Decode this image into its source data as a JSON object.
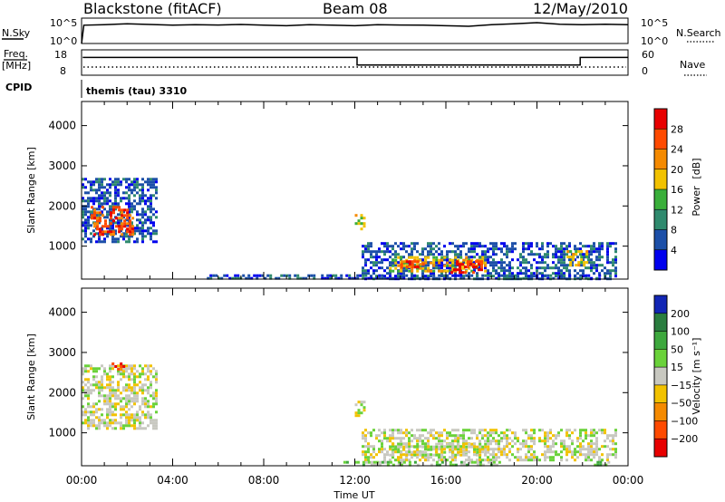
{
  "header": {
    "station": "Blackstone (fitACF)",
    "beam": "Beam 08",
    "date": "12/May/2010"
  },
  "top_panels": {
    "nsky_label": "N.Sky",
    "nsky_ticks": [
      "10^5",
      "10^0"
    ],
    "nsearch_label": "N.Search",
    "nsearch_ticks": [
      "10^5",
      "10^0"
    ],
    "freq_label": "Freq.",
    "freq_unit": "[MHz]",
    "freq_ticks": [
      "18",
      "8"
    ],
    "nave_label": "Nave",
    "nave_ticks": [
      "60",
      "0"
    ],
    "cpid_label": "CPID",
    "cpid_text": "themis (tau) 3310"
  },
  "colors": {
    "power_scale": [
      "#0000ee",
      "#1c4fa8",
      "#2f8a6e",
      "#3aaf3a",
      "#f2c200",
      "#f58a00",
      "#ff4a00",
      "#e80000"
    ],
    "velocity_scale": [
      "#1226b5",
      "#2a7d3f",
      "#3da83d",
      "#6ad23a",
      "#c8c8c0",
      "#f2c200",
      "#f58a00",
      "#ff4a00",
      "#e80000"
    ],
    "ground_scatter": "#c8c8c0"
  },
  "chart_data": [
    {
      "type": "line",
      "name_label": "N.Sky",
      "x": [
        0,
        0.1,
        1,
        2,
        3,
        4,
        5,
        6,
        7,
        8,
        9,
        10,
        11,
        12,
        13,
        14,
        15,
        16,
        17,
        18,
        19,
        20,
        21,
        22,
        23,
        24
      ],
      "values_fraction": [
        0.0,
        0.72,
        0.74,
        0.78,
        0.75,
        0.72,
        0.74,
        0.73,
        0.75,
        0.72,
        0.7,
        0.74,
        0.72,
        0.7,
        0.74,
        0.73,
        0.72,
        0.7,
        0.68,
        0.74,
        0.78,
        0.82,
        0.76,
        0.74,
        0.76,
        0.74
      ]
    },
    {
      "type": "line",
      "name_label": "Freq.",
      "ylim": [
        8,
        18
      ],
      "x": [
        0.05,
        12.1,
        12.1,
        21.9,
        21.9,
        24
      ],
      "values": [
        15,
        15,
        12,
        12,
        15,
        15
      ]
    },
    {
      "type": "heatmap",
      "title": "Power",
      "unit": "[dB]",
      "xlabel": "",
      "ylabel": "Slant Range [km]",
      "x_ticks": [
        "00:00",
        "04:00",
        "08:00",
        "12:00",
        "16:00",
        "20:00",
        "00:00"
      ],
      "y_ticks": [
        1000,
        2000,
        3000,
        4000
      ],
      "xlim": [
        0,
        24
      ],
      "ylim": [
        180,
        4600
      ],
      "colorbar_ticks": [
        4,
        8,
        12,
        16,
        20,
        24,
        28
      ],
      "regions": [
        {
          "t0": 0.0,
          "t1": 3.3,
          "r0": 1100,
          "r1": 2700,
          "level": 1
        },
        {
          "t0": 0.4,
          "t1": 2.2,
          "r0": 1300,
          "r1": 2000,
          "level": 6
        },
        {
          "t0": 12.0,
          "t1": 12.4,
          "r0": 1450,
          "r1": 1800,
          "level": 4
        },
        {
          "t0": 12.3,
          "t1": 23.5,
          "r0": 200,
          "r1": 1100,
          "level": 1
        },
        {
          "t0": 13.5,
          "t1": 17.8,
          "r0": 400,
          "r1": 750,
          "level": 4
        },
        {
          "t0": 14.0,
          "t1": 15.0,
          "r0": 450,
          "r1": 650,
          "level": 6
        },
        {
          "t0": 16.2,
          "t1": 17.6,
          "r0": 350,
          "r1": 650,
          "level": 7
        },
        {
          "t0": 21.3,
          "t1": 22.2,
          "r0": 550,
          "r1": 900,
          "level": 4
        },
        {
          "t0": 5.5,
          "t1": 23.0,
          "r0": 180,
          "r1": 300,
          "level": 1
        }
      ]
    },
    {
      "type": "heatmap",
      "title": "Velocity",
      "unit": "[m s⁻¹]",
      "xlabel": "Time UT",
      "ylabel": "Slant Range [km]",
      "x_ticks": [
        "00:00",
        "04:00",
        "08:00",
        "12:00",
        "16:00",
        "20:00",
        "00:00"
      ],
      "y_ticks": [
        1000,
        2000,
        3000,
        4000
      ],
      "xlim": [
        0,
        24
      ],
      "ylim": [
        180,
        4600
      ],
      "colorbar_ticks": [
        200,
        100,
        50,
        15,
        -15,
        -50,
        -100,
        -200
      ],
      "regions": [
        {
          "t0": 0.0,
          "t1": 3.3,
          "r0": 1100,
          "r1": 2700,
          "level": 4
        },
        {
          "t0": 12.0,
          "t1": 12.4,
          "r0": 1450,
          "r1": 1800,
          "level": 4
        },
        {
          "t0": 12.3,
          "t1": 23.5,
          "r0": 350,
          "r1": 1100,
          "level": 4
        },
        {
          "t0": 13.5,
          "t1": 17.8,
          "r0": 450,
          "r1": 750,
          "level": 4
        },
        {
          "t0": 11.5,
          "t1": 18.5,
          "r0": 180,
          "r1": 300,
          "level": 3
        },
        {
          "t0": 22.5,
          "t1": 23.3,
          "r0": 180,
          "r1": 300,
          "level": 3
        },
        {
          "t0": 1.2,
          "t1": 1.8,
          "r0": 2550,
          "r1": 2750,
          "level": 7
        }
      ]
    }
  ]
}
